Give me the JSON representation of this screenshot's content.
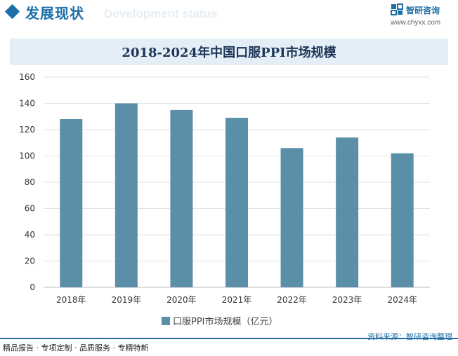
{
  "header": {
    "section_title": "发展现状",
    "section_watermark": "Development status",
    "brand_name": "智研咨询",
    "brand_url": "www.chyxx.com"
  },
  "chart_data": {
    "type": "bar",
    "title": "2018-2024年中国口服PPI市场规模",
    "categories": [
      "2018年",
      "2019年",
      "2020年",
      "2021年",
      "2022年",
      "2023年",
      "2024年"
    ],
    "series": [
      {
        "name": "口服PPI市场规模（亿元）",
        "values": [
          128,
          140,
          135,
          129,
          106,
          114,
          102
        ]
      }
    ],
    "ylim": [
      0,
      160
    ],
    "yticks": [
      0,
      20,
      40,
      60,
      80,
      100,
      120,
      140,
      160
    ],
    "xlabel": "",
    "ylabel": "",
    "grid": true,
    "legend_position": "bottom",
    "color": "#5b8fa8"
  },
  "footer": {
    "left_text": "精品报告 · 专项定制 · 品质服务 · 专精特新",
    "source_text": "资料来源：智研咨询整理"
  }
}
